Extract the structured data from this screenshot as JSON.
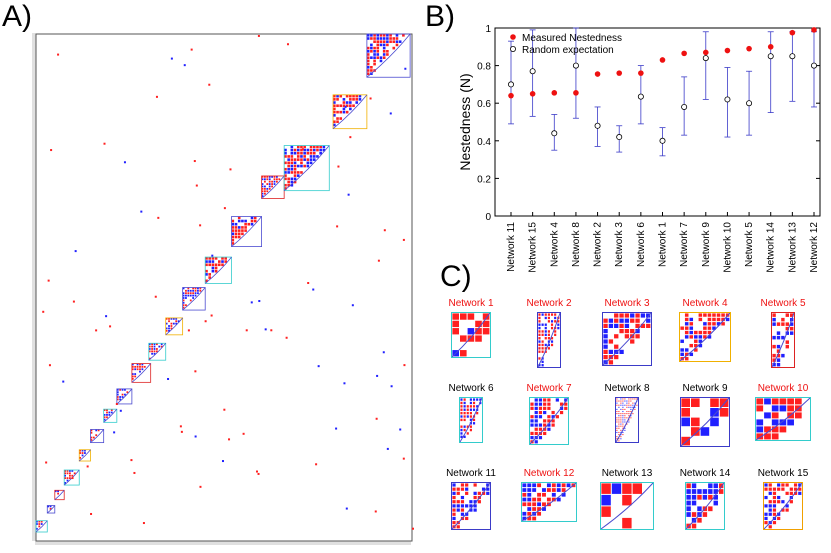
{
  "panel_labels": {
    "a": "A)",
    "b": "B)",
    "c": "C)"
  },
  "chart_data": [
    {
      "panel": "A)",
      "type": "heatmap",
      "title": "",
      "xlabel": "",
      "ylabel": "",
      "colors": {
        "module_a": "#ff2020",
        "module_b": "#2020ff",
        "frame_cyan": "#33cccc",
        "frame_blue": "#4b4bd0",
        "frame_red": "#dd2222",
        "frame_yellow": "#f0b000"
      }
    },
    {
      "panel": "B)",
      "type": "scatter",
      "title": "",
      "xlabel": "",
      "ylabel": "Nestedness (N)",
      "ylim": [
        0,
        1
      ],
      "yticks": [
        "0",
        "0.2",
        "0.4",
        "0.6",
        "0.8",
        "1"
      ],
      "grid": false,
      "legend_position": "top-left",
      "categories": [
        "Network 11",
        "Network 15",
        "Network 4",
        "Network 8",
        "Network 2",
        "Network 3",
        "Network 6",
        "Network 1",
        "Network 7",
        "Network 9",
        "Network 10",
        "Network 5",
        "Network 14",
        "Network 13",
        "Network 12"
      ],
      "series": [
        {
          "name": "Measured Nestedness",
          "color": "#ee1111",
          "marker": "filled-dot",
          "values": [
            0.64,
            0.65,
            0.655,
            0.655,
            0.755,
            0.76,
            0.76,
            0.83,
            0.865,
            0.87,
            0.88,
            0.89,
            0.9,
            0.975,
            0.99
          ]
        },
        {
          "name": "Random expectation",
          "color": "#3b3bc8",
          "marker": "open-circle",
          "values": [
            0.7,
            0.77,
            0.44,
            0.8,
            0.48,
            0.42,
            0.635,
            0.4,
            0.58,
            0.84,
            0.62,
            0.6,
            0.85,
            0.85,
            0.8
          ],
          "error_low": [
            0.49,
            0.53,
            0.35,
            0.52,
            0.37,
            0.34,
            0.49,
            0.32,
            0.43,
            0.62,
            0.42,
            0.43,
            0.55,
            0.61,
            0.58
          ],
          "error_high": [
            0.93,
            0.99,
            0.54,
            1.0,
            0.58,
            0.48,
            0.8,
            0.47,
            0.74,
            0.98,
            0.79,
            0.77,
            0.98,
            0.98,
            0.98
          ]
        }
      ]
    }
  ],
  "panel_c": {
    "networks": [
      {
        "name": "Network 1",
        "color": "#ee1111",
        "frame": "#33cccc"
      },
      {
        "name": "Network 2",
        "color": "#ee1111",
        "frame": "#3b3bc8"
      },
      {
        "name": "Network 3",
        "color": "#ee1111",
        "frame": "#3b3bc8"
      },
      {
        "name": "Network 4",
        "color": "#ee1111",
        "frame": "#f0b000"
      },
      {
        "name": "Network 5",
        "color": "#ee1111",
        "frame": "#dd2222"
      },
      {
        "name": "Network 6",
        "color": "#000000",
        "frame": "#33cccc"
      },
      {
        "name": "Network 7",
        "color": "#ee1111",
        "frame": "#33cccc"
      },
      {
        "name": "Network 8",
        "color": "#000000",
        "frame": "#3b3bc8"
      },
      {
        "name": "Network 9",
        "color": "#000000",
        "frame": "#3b3bc8"
      },
      {
        "name": "Network 10",
        "color": "#ee1111",
        "frame": "#33cccc"
      },
      {
        "name": "Network 11",
        "color": "#000000",
        "frame": "#3b3bc8"
      },
      {
        "name": "Network 12",
        "color": "#ee1111",
        "frame": "#33cccc"
      },
      {
        "name": "Network 13",
        "color": "#000000",
        "frame": "#33cccc"
      },
      {
        "name": "Network 14",
        "color": "#000000",
        "frame": "#33cccc"
      },
      {
        "name": "Network 15",
        "color": "#000000",
        "frame": "#f0a000"
      }
    ]
  }
}
